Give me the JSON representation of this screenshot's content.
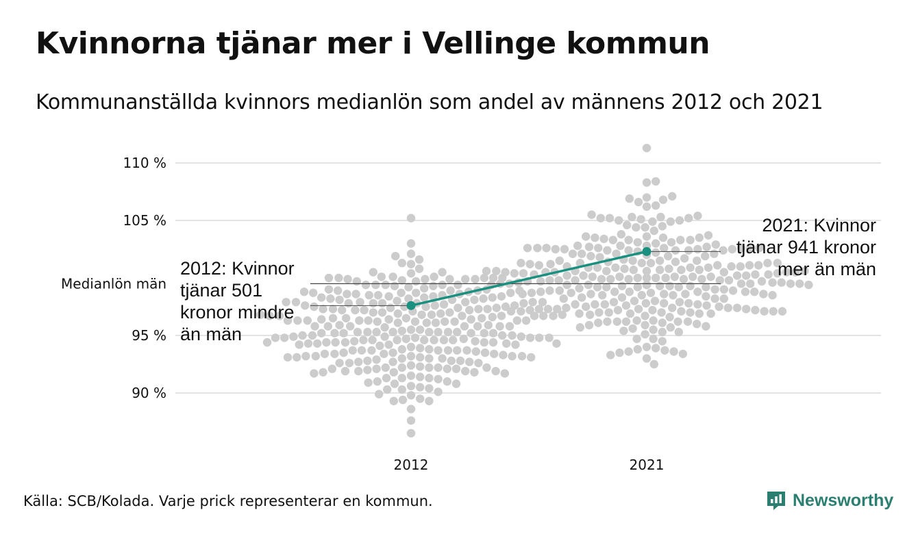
{
  "header": {
    "title": "Kvinnorna tjänar mer i Vellinge kommun",
    "subtitle": "Kommunanställda kvinnors medianlön som andel av männens 2012 och 2021"
  },
  "footer": {
    "source": "Källa: SCB/Kolada. Varje prick representerar en kommun.",
    "brand": "Newsworthy"
  },
  "colors": {
    "highlight": "#1a9080",
    "dots": "#cccccc",
    "grid": "#e3e3e3",
    "reference": "#444444",
    "brand": "#2b7f70"
  },
  "chart_data": {
    "type": "scatter",
    "subtype": "beeswarm",
    "title": "Kvinnorna tjänar mer i Vellinge kommun",
    "subtitle": "Kommunanställda kvinnors medianlön som andel av männens 2012 och 2021",
    "categories": [
      "2012",
      "2021"
    ],
    "y_ticks": [
      {
        "value": 90,
        "label": "90 %"
      },
      {
        "value": 95,
        "label": "95 %"
      },
      {
        "value": 105,
        "label": "105 %"
      },
      {
        "value": 110,
        "label": "110 %"
      }
    ],
    "ylim": [
      86.5,
      111.5
    ],
    "grid": true,
    "reference_line": {
      "value": 99.5,
      "label": "Medianlön män"
    },
    "distributions": [
      {
        "category": "2012",
        "min": 86.5,
        "max": 105.2,
        "median": 95.5,
        "count": 290
      },
      {
        "category": "2021",
        "min": 92.5,
        "max": 111.3,
        "median": 100.0,
        "count": 290
      }
    ],
    "highlight": {
      "name": "Vellinge",
      "values": [
        {
          "category": "2012",
          "value": 97.6
        },
        {
          "category": "2021",
          "value": 102.3
        }
      ]
    },
    "annotations": [
      {
        "category": "2012",
        "text": [
          "2012: Kvinnor",
          "tjänar 501",
          "kronor mindre",
          "än män"
        ]
      },
      {
        "category": "2021",
        "text": [
          "2021: Kvinnor",
          "tjänar 941 kronor",
          "mer än män"
        ]
      }
    ]
  }
}
